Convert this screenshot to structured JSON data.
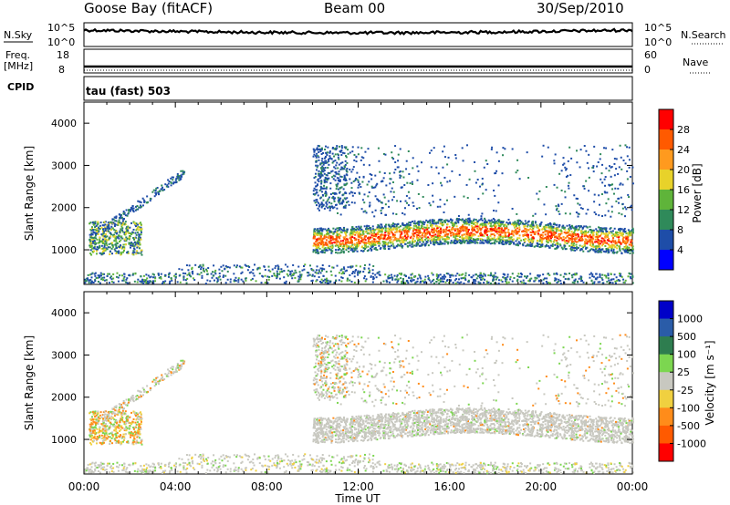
{
  "header": {
    "site": "Goose Bay (fitACF)",
    "beam": "Beam 00",
    "date": "30/Sep/2010"
  },
  "noise_panel": {
    "left_label": "N.Sky",
    "right_label": "N.Search",
    "left_ticks": [
      "10^5",
      "10^0"
    ],
    "right_ticks": [
      "10^5",
      "10^0"
    ]
  },
  "freq_panel": {
    "left_label_1": "Freq.",
    "left_label_2": "[MHz]",
    "right_label": "Nave",
    "left_ticks": [
      "18",
      "8"
    ],
    "right_ticks": [
      "60",
      "0"
    ]
  },
  "cpid": {
    "label": "CPID",
    "value": "tau (fast) 503"
  },
  "power_panel": {
    "ylabel": "Slant Range [km]",
    "colorbar_label": "Power [dB]",
    "colorbar_ticks": [
      "28",
      "24",
      "20",
      "16",
      "12",
      "8",
      "4"
    ],
    "colorbar_colors": [
      "#ff0000",
      "#ff5a00",
      "#ff9a1e",
      "#e8d22a",
      "#5fb43a",
      "#2f8a5a",
      "#1e4da8",
      "#0000ff"
    ]
  },
  "velocity_panel": {
    "ylabel": "Slant Range [km]",
    "colorbar_label": "Velocity [m s⁻¹]",
    "colorbar_ticks": [
      "1000",
      "500",
      "100",
      "25",
      "-25",
      "-100",
      "-500",
      "-1000"
    ],
    "colorbar_colors": [
      "#0000c8",
      "#2a5ca8",
      "#2e7d4f",
      "#7cd650",
      "#c8c8c0",
      "#f0d040",
      "#ff8c1a",
      "#ff5a00",
      "#ff0000"
    ]
  },
  "chart_data": {
    "type": "heatmap",
    "title": "Goose Bay (fitACF)  Beam 00  30/Sep/2010",
    "xlabel": "Time UT",
    "ylabel": "Slant Range [km]",
    "x_ticks": [
      "00:00",
      "04:00",
      "08:00",
      "12:00",
      "16:00",
      "20:00",
      "00:00"
    ],
    "y_ticks": [
      "1000",
      "2000",
      "3000",
      "4000"
    ],
    "xlim_hours": [
      0,
      24
    ],
    "ylim_km": [
      180,
      4500
    ],
    "scatter_regions": [
      {
        "name": "power",
        "t": [
          0.2,
          2.5
        ],
        "r": [
          900,
          1800
        ],
        "level": "green-orange"
      },
      {
        "name": "power",
        "t": [
          10.0,
          24.0
        ],
        "r": [
          1000,
          1800
        ],
        "level": "orange-red"
      },
      {
        "name": "power",
        "t": [
          0.0,
          24.0
        ],
        "r": [
          200,
          600
        ],
        "level": "blue"
      },
      {
        "name": "velocity",
        "t": [
          0.2,
          2.5
        ],
        "r": [
          900,
          1800
        ],
        "level": "orange-green"
      },
      {
        "name": "velocity",
        "t": [
          10.0,
          24.0
        ],
        "r": [
          1000,
          1900
        ],
        "level": "grey"
      }
    ]
  }
}
